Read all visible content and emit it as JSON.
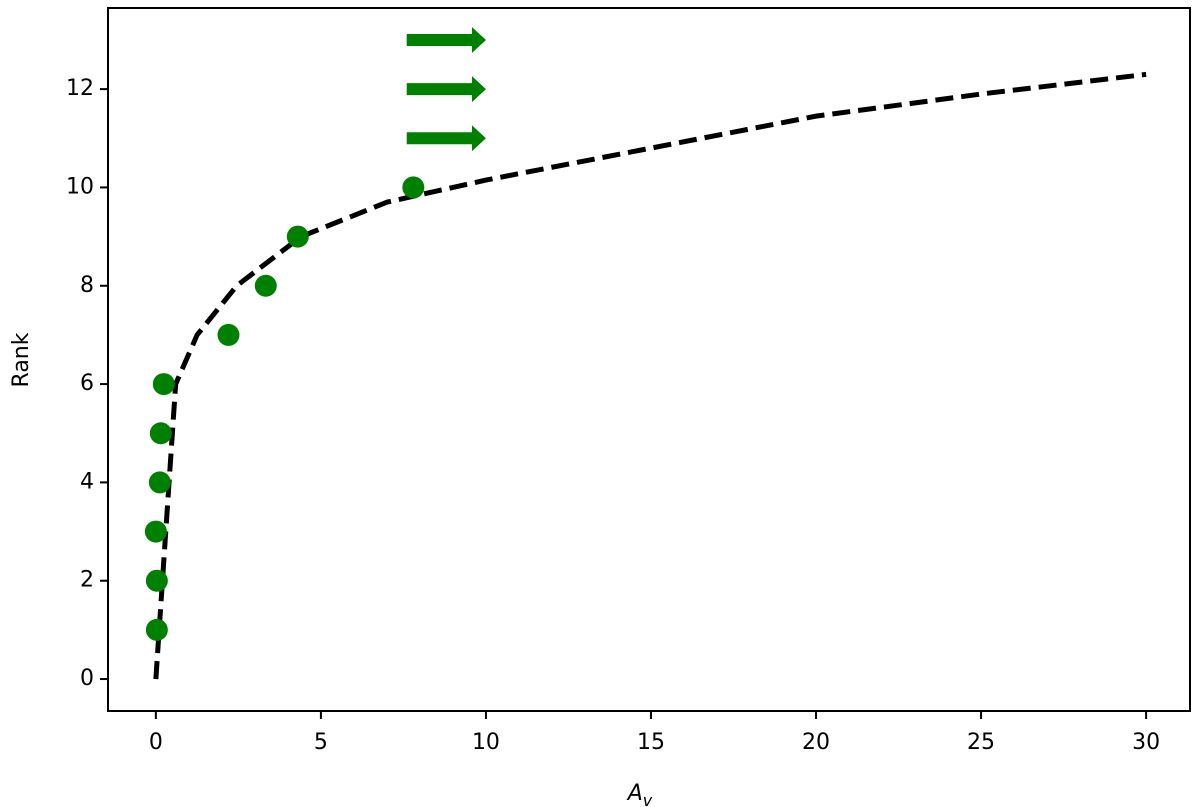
{
  "chart_data": {
    "type": "scatter",
    "xlabel": "A",
    "xlabel_sub": "v",
    "ylabel": "Rank",
    "xlim": [
      -1.45,
      31.33
    ],
    "ylim": [
      -0.65,
      13.65
    ],
    "xticks": [
      0,
      5,
      10,
      15,
      20,
      25,
      30
    ],
    "yticks": [
      0,
      2,
      4,
      6,
      8,
      10,
      12
    ],
    "series": [
      {
        "color": "#008000",
        "marker": "circle",
        "x": [
          0.03,
          0.03,
          0.0,
          0.12,
          0.15,
          0.24,
          2.2,
          3.33,
          4.3,
          7.8
        ],
        "values": [
          1,
          2,
          3,
          4,
          5,
          6,
          7,
          8,
          9,
          10
        ]
      },
      {
        "color": "#008000",
        "marker": "right-arrow",
        "length": 2.4,
        "x": [
          7.6,
          7.6,
          7.6
        ],
        "values": [
          11,
          12,
          13
        ]
      }
    ],
    "lines": [
      {
        "color": "#000000",
        "dash": true,
        "x": [
          0,
          0.6,
          1.25,
          2.45,
          4.4,
          7.0,
          10,
          15,
          20,
          25,
          30
        ],
        "values": [
          0,
          6,
          7,
          8,
          9,
          9.7,
          10.15,
          10.8,
          11.45,
          11.9,
          12.3
        ]
      }
    ]
  }
}
